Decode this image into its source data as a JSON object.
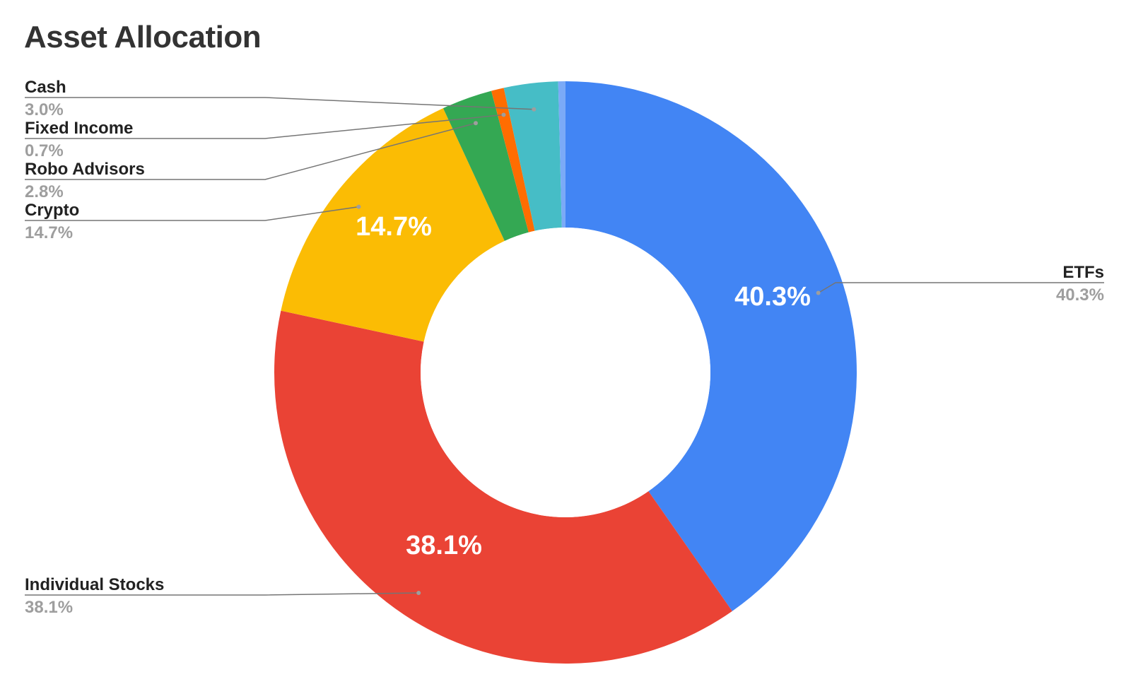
{
  "chart_data": {
    "type": "pie",
    "title": "Asset Allocation",
    "donut": true,
    "slices": [
      {
        "label": "ETFs",
        "value": 40.3,
        "pct_label": "40.3%",
        "color": "#4285F4",
        "inner_label": "40.3%"
      },
      {
        "label": "Individual Stocks",
        "value": 38.1,
        "pct_label": "38.1%",
        "color": "#EA4335",
        "inner_label": "38.1%"
      },
      {
        "label": "Crypto",
        "value": 14.7,
        "pct_label": "14.7%",
        "color": "#FBBC04",
        "inner_label": "14.7%"
      },
      {
        "label": "Robo Advisors",
        "value": 2.8,
        "pct_label": "2.8%",
        "color": "#34A853",
        "inner_label": ""
      },
      {
        "label": "Fixed Income",
        "value": 0.7,
        "pct_label": "0.7%",
        "color": "#FF6D01",
        "inner_label": ""
      },
      {
        "label": "Cash",
        "value": 3.0,
        "pct_label": "3.0%",
        "color": "#46BDC6",
        "inner_label": ""
      },
      {
        "label": "",
        "value": 0.4,
        "pct_label": "",
        "color": "#7BAAF7",
        "inner_label": ""
      }
    ]
  }
}
